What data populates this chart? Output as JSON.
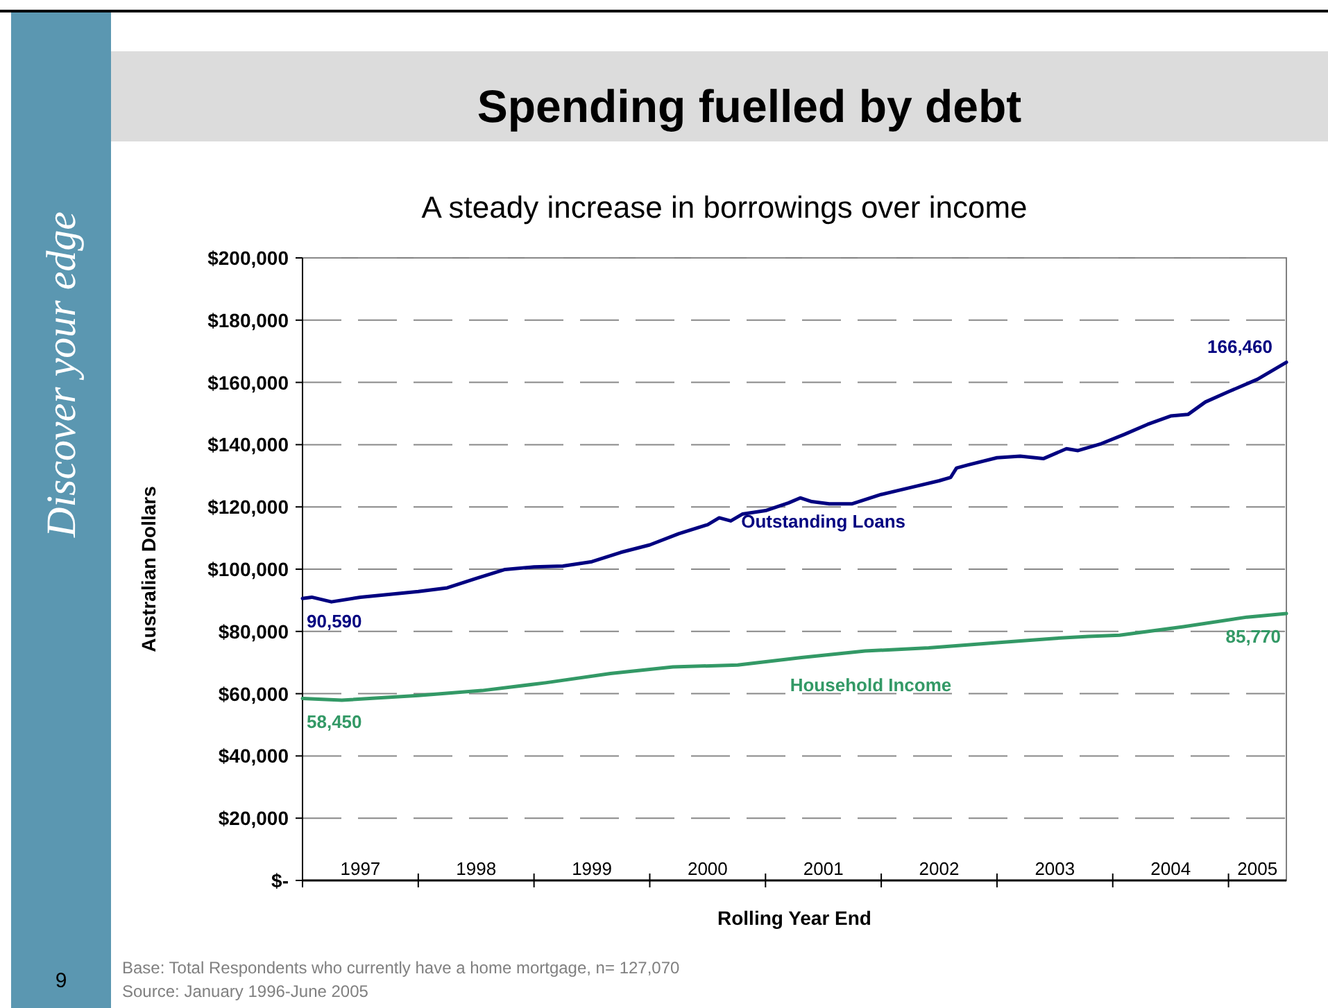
{
  "chart_data": {
    "type": "line",
    "title": "Spending fuelled by debt",
    "subtitle": "A steady increase in borrowings over income",
    "xlabel": "Rolling Year End",
    "ylabel": "Australian Dollars",
    "annotations": [
      "Base: Total Respondents who currently have a home mortgage, n= 127,070",
      "Source: January 1996-June 2005",
      "9",
      "Discover your edge"
    ],
    "xlim": [
      1997,
      2005.5
    ],
    "xticks": [
      {
        "value": 1997,
        "label": null
      },
      {
        "value": 1997.5,
        "label": "1997"
      },
      {
        "value": 1998,
        "label": null
      },
      {
        "value": 1998.5,
        "label": "1998"
      },
      {
        "value": 1999,
        "label": null
      },
      {
        "value": 1999.5,
        "label": "1999"
      },
      {
        "value": 2000,
        "label": null
      },
      {
        "value": 2000.5,
        "label": "2000"
      },
      {
        "value": 2001,
        "label": null
      },
      {
        "value": 2001.5,
        "label": "2001"
      },
      {
        "value": 2002,
        "label": null
      },
      {
        "value": 2002.5,
        "label": "2002"
      },
      {
        "value": 2003,
        "label": null
      },
      {
        "value": 2003.5,
        "label": "2003"
      },
      {
        "value": 2004,
        "label": null
      },
      {
        "value": 2004.5,
        "label": "2004"
      },
      {
        "value": 2005,
        "label": null
      },
      {
        "value": 2005.25,
        "label": "2005"
      }
    ],
    "ylim": [
      0,
      200000
    ],
    "yticks": [
      {
        "value": 0,
        "label": "$-"
      },
      {
        "value": 20000,
        "label": "$20,000"
      },
      {
        "value": 40000,
        "label": "$40,000"
      },
      {
        "value": 60000,
        "label": "$60,000"
      },
      {
        "value": 80000,
        "label": "$80,000"
      },
      {
        "value": 100000,
        "label": "$100,000"
      },
      {
        "value": 120000,
        "label": "$120,000"
      },
      {
        "value": 140000,
        "label": "$140,000"
      },
      {
        "value": 160000,
        "label": "$160,000"
      },
      {
        "value": 180000,
        "label": "$180,000"
      },
      {
        "value": 200000,
        "label": "$200,000"
      }
    ],
    "grid": "y",
    "marker": "none",
    "line_style": "solid",
    "series": [
      {
        "name": "Outstanding Loans",
        "color": "#000080",
        "x": [
          1997,
          1997.08,
          1997.25,
          1997.5,
          1998,
          1998.25,
          1998.5,
          1998.75,
          1999,
          1999.25,
          1999.5,
          1999.75,
          2000,
          2000.25,
          2000.5,
          2000.6,
          2000.7,
          2000.8,
          2001,
          2001.2,
          2001.3,
          2001.4,
          2001.55,
          2001.75,
          2002,
          2002.25,
          2002.5,
          2002.6,
          2002.65,
          2002.75,
          2003,
          2003.2,
          2003.4,
          2003.6,
          2003.7,
          2003.9,
          2004.1,
          2004.3,
          2004.5,
          2004.65,
          2004.8,
          2005,
          2005.25,
          2005.5
        ],
        "values": [
          90590,
          91000,
          89500,
          91000,
          92800,
          94000,
          97000,
          99900,
          100700,
          101000,
          102400,
          105400,
          107800,
          111400,
          114300,
          116500,
          115500,
          117700,
          118800,
          121300,
          122900,
          121700,
          121000,
          121000,
          124000,
          126200,
          128400,
          129500,
          132500,
          133500,
          135800,
          136300,
          135500,
          138700,
          138100,
          140300,
          143300,
          146500,
          149200,
          149700,
          153700,
          157000,
          161000,
          166460
        ],
        "value_labels": [
          "90,590",
          null,
          null,
          null,
          null,
          null,
          null,
          null,
          null,
          null,
          null,
          null,
          null,
          null,
          null,
          null,
          null,
          null,
          null,
          null,
          null,
          null,
          null,
          null,
          null,
          null,
          null,
          null,
          null,
          null,
          null,
          null,
          null,
          null,
          null,
          null,
          null,
          null,
          null,
          null,
          null,
          null,
          null,
          "166,460"
        ]
      },
      {
        "name": "Household Income",
        "color": "#339966",
        "x": [
          1997,
          1997.34,
          1998,
          1998.55,
          1999.1,
          1999.66,
          2000.2,
          2000.76,
          2001.31,
          2001.86,
          2002.41,
          2002.96,
          2003.51,
          2003.79,
          2004.06,
          2004.61,
          2005.16,
          2005.5
        ],
        "values": [
          58450,
          57900,
          59400,
          61000,
          63500,
          66500,
          68600,
          69200,
          71600,
          73700,
          74700,
          76300,
          77800,
          78400,
          78800,
          81500,
          84600,
          85770
        ],
        "value_labels": [
          "58,450",
          null,
          null,
          null,
          null,
          null,
          null,
          null,
          null,
          null,
          null,
          null,
          null,
          null,
          null,
          null,
          null,
          "85,770"
        ]
      }
    ]
  }
}
